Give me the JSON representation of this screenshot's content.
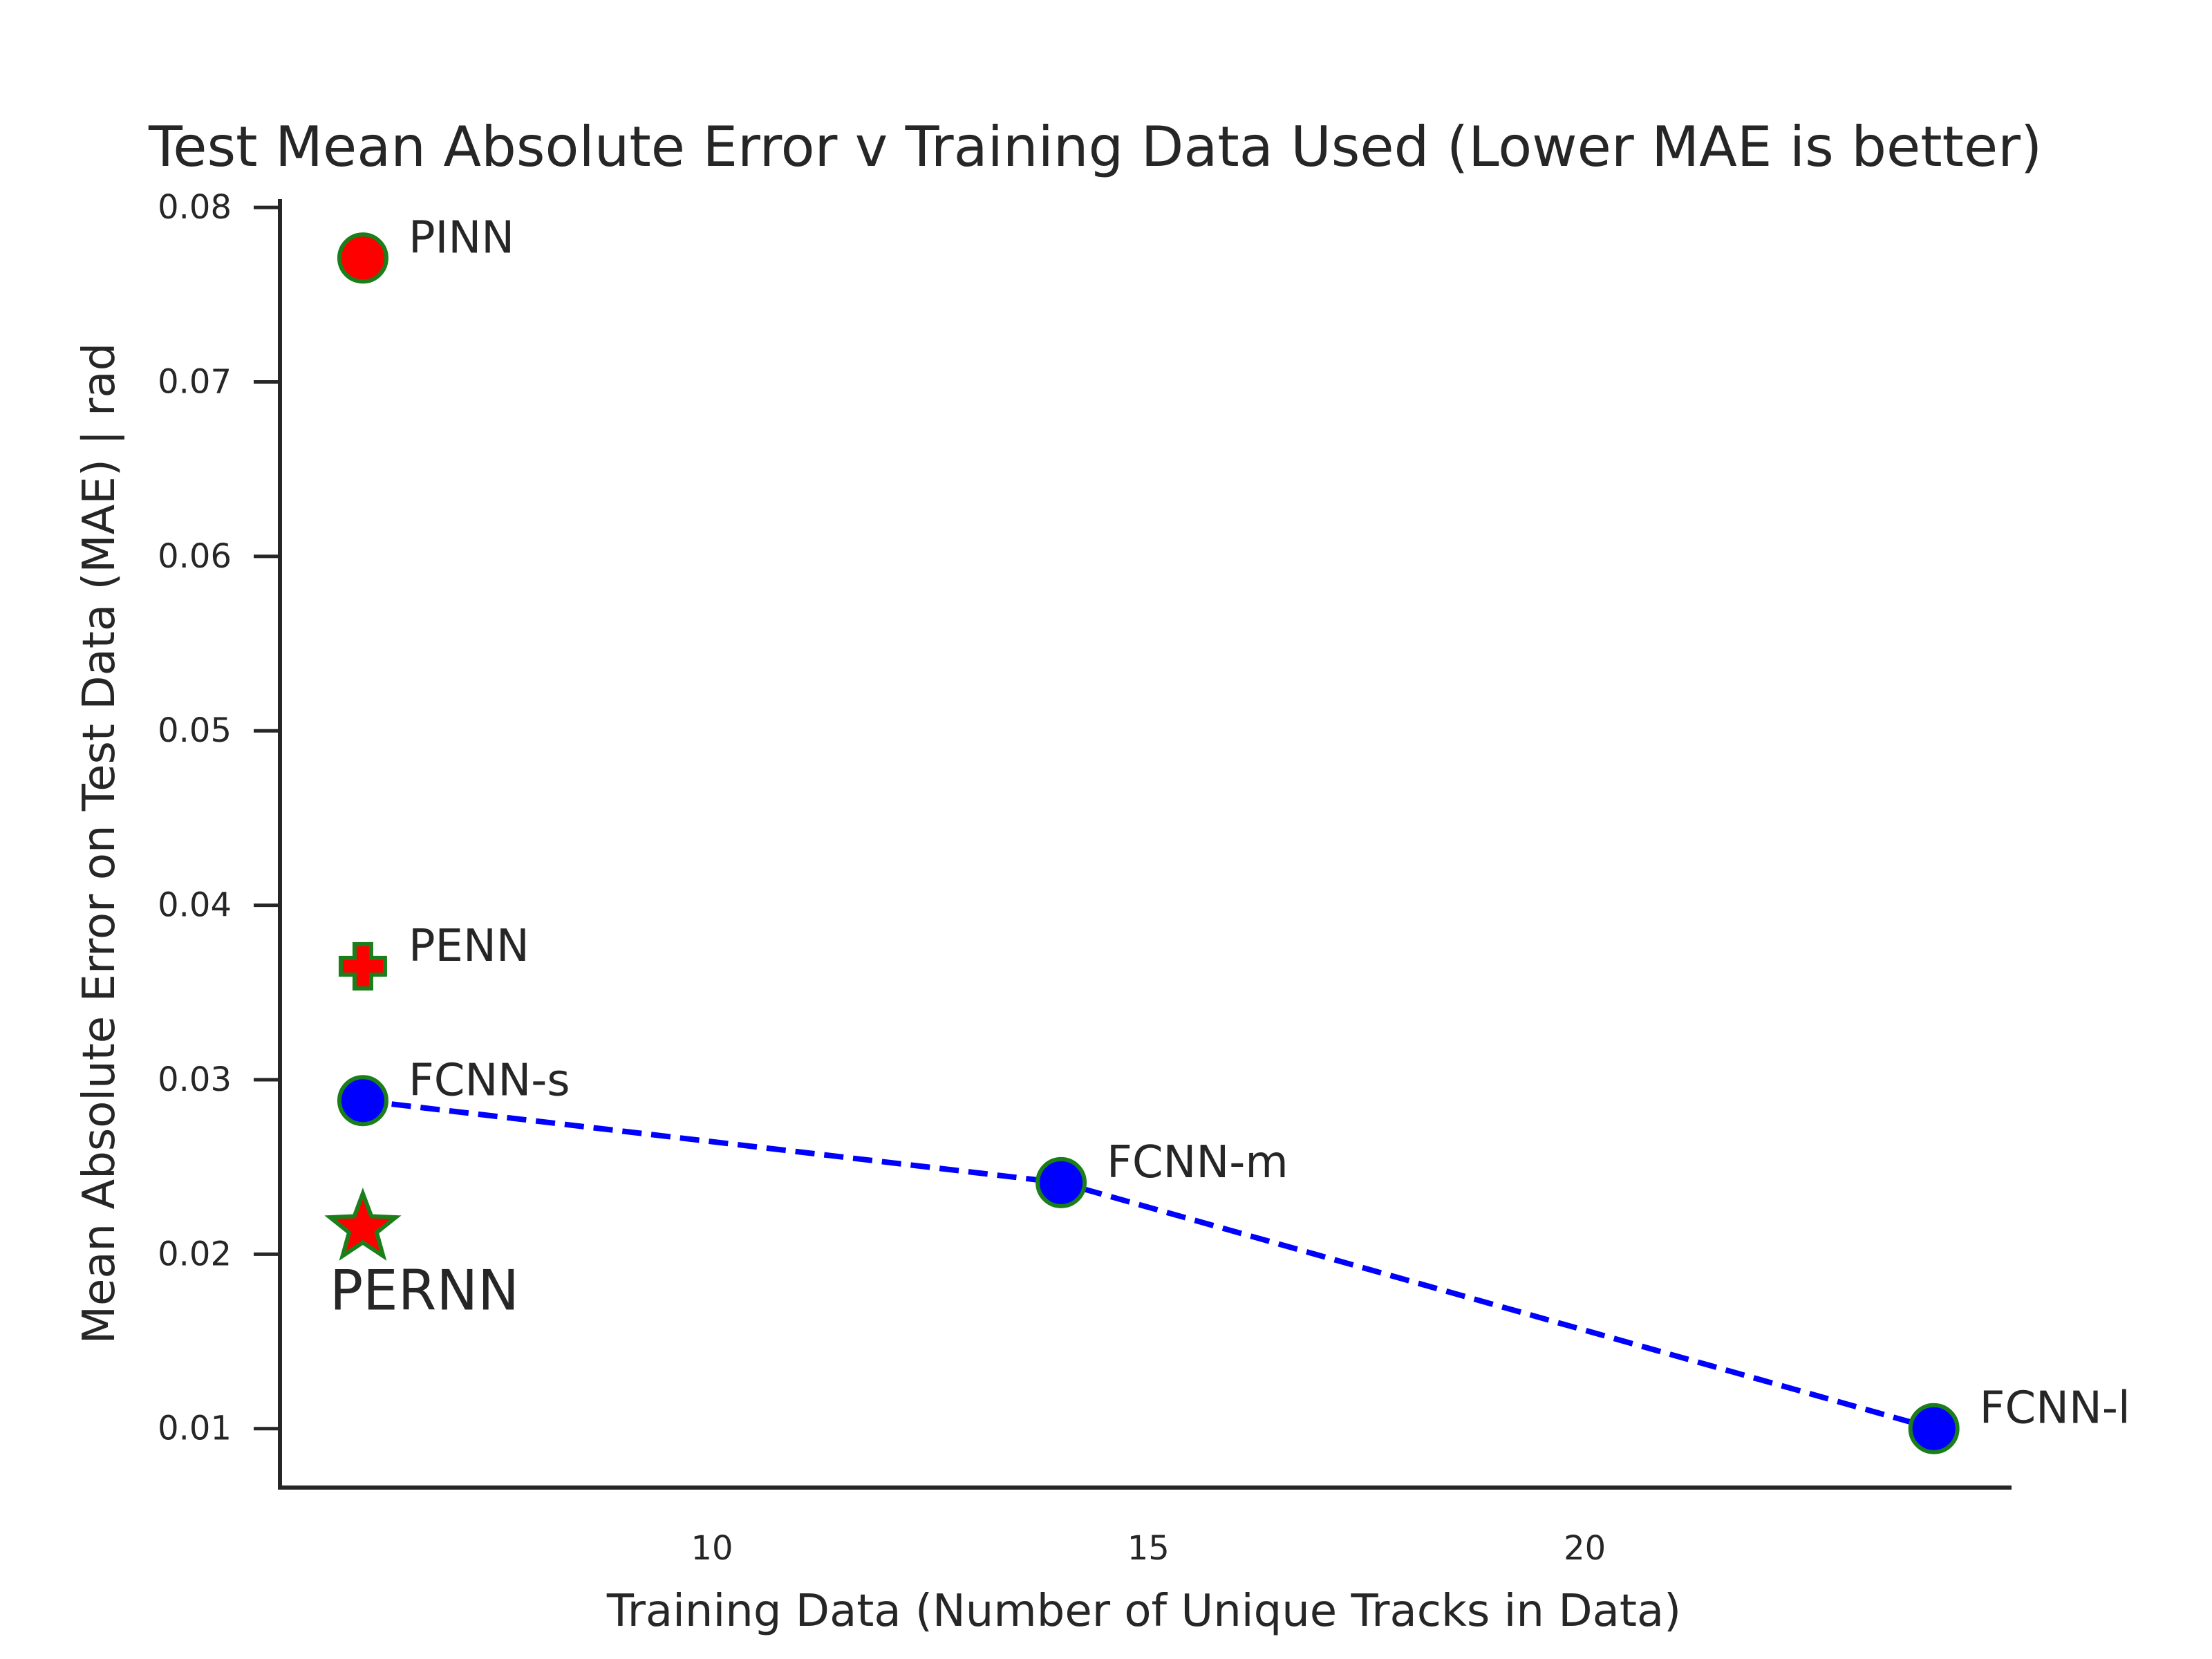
{
  "chart_data": {
    "type": "scatter",
    "title": "Test Mean Absolute Error v Training Data Used (Lower MAE is better)",
    "xlabel": "Training Data (Number of Unique Tracks in Data)",
    "ylabel": "Mean Absolute Error on Test Data (MAE) | rad",
    "xlim": [
      5.05,
      24.85
    ],
    "ylim": [
      0.0067,
      0.0804
    ],
    "xticks": [
      10,
      15,
      20
    ],
    "xtick_labels": [
      "10",
      "15",
      "20"
    ],
    "yticks": [
      0.01,
      0.02,
      0.03,
      0.04,
      0.05,
      0.06,
      0.07,
      0.08
    ],
    "ytick_labels": [
      "0.01",
      "0.02",
      "0.03",
      "0.04",
      "0.05",
      "0.06",
      "0.07",
      "0.08"
    ],
    "grid": false,
    "points": [
      {
        "label": "PINN",
        "x": 6,
        "y": 0.0771,
        "marker": "circle",
        "fill": "#ff0000",
        "edge": "#1a7f1a"
      },
      {
        "label": "PENN",
        "x": 6,
        "y": 0.0365,
        "marker": "plus",
        "fill": "#ff0000",
        "edge": "#1a7f1a"
      },
      {
        "label": "FCNN-s",
        "x": 6,
        "y": 0.0288,
        "marker": "circle",
        "fill": "#0000ff",
        "edge": "#1a7f1a"
      },
      {
        "label": "PERNN",
        "x": 6,
        "y": 0.0215,
        "marker": "star",
        "fill": "#ff0000",
        "edge": "#1a7f1a"
      },
      {
        "label": "FCNN-m",
        "x": 14,
        "y": 0.0241,
        "marker": "circle",
        "fill": "#0000ff",
        "edge": "#1a7f1a"
      },
      {
        "label": "FCNN-l",
        "x": 24,
        "y": 0.01,
        "marker": "circle",
        "fill": "#0000ff",
        "edge": "#1a7f1a"
      }
    ],
    "series": [
      {
        "x": [
          6,
          14,
          24
        ],
        "y": [
          0.0288,
          0.0241,
          0.01
        ],
        "style": "dashed",
        "color": "#0000ff"
      }
    ]
  }
}
